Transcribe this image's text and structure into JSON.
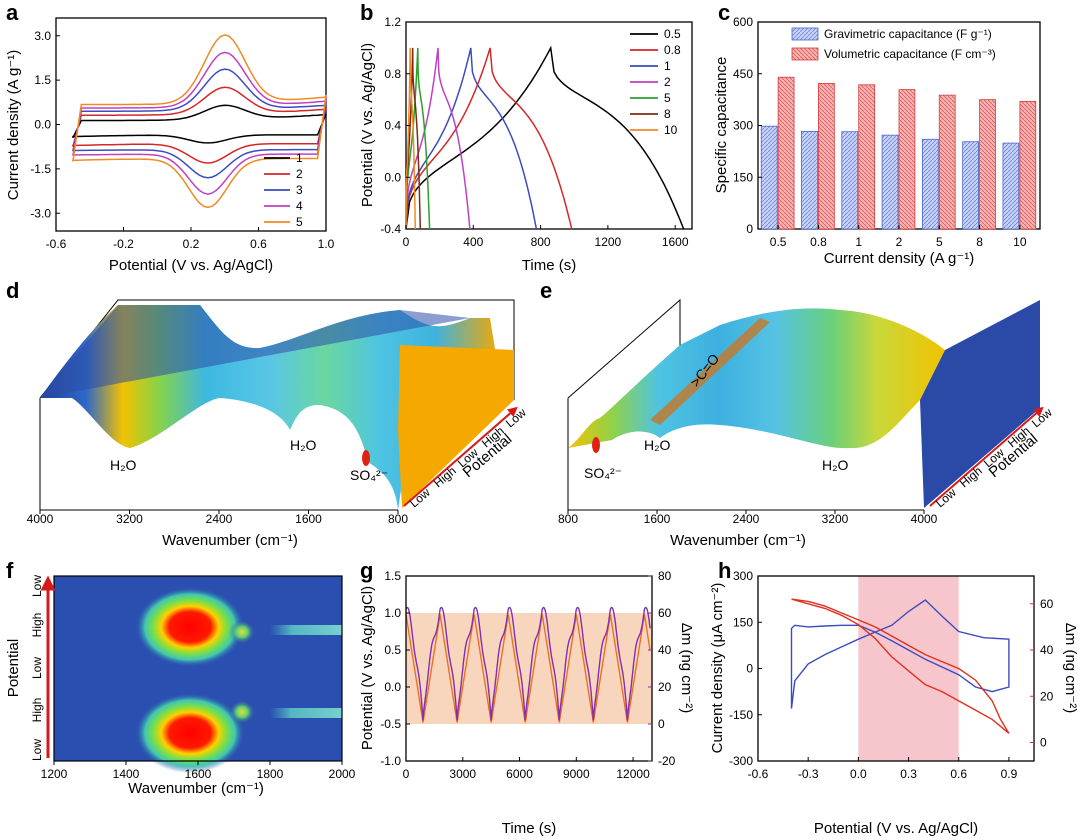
{
  "panel_letters": [
    "a",
    "b",
    "c",
    "d",
    "e",
    "f",
    "g",
    "h"
  ],
  "chart_data": [
    {
      "panel": "a",
      "type": "line",
      "xlabel": "Potential (V vs. Ag/AgCl)",
      "ylabel": "Current density (A g⁻¹)",
      "xlim": [
        -0.6,
        1.0
      ],
      "ylim": [
        -3.6,
        3.6
      ],
      "xticks": [
        "-0.6",
        "-0.2",
        "0.2",
        "0.6",
        "1.0"
      ],
      "yticks": [
        "3.0",
        "1.5",
        "0.0",
        "-1.5",
        "-3.0"
      ],
      "legend_position": "bottom-right",
      "series": [
        {
          "name": "1",
          "color": "#000000",
          "ox_peak": [
            0.4,
            0.62
          ],
          "red_peak": [
            0.3,
            -0.62
          ],
          "upper_base": 0.15,
          "lower_base": -0.35,
          "upper_end": 0.35,
          "lower_start": -0.45
        },
        {
          "name": "2",
          "color": "#d62728",
          "ox_peak": [
            0.4,
            1.25
          ],
          "red_peak": [
            0.3,
            -1.3
          ],
          "upper_base": 0.35,
          "lower_base": -0.65,
          "upper_end": 0.55,
          "lower_start": -0.75
        },
        {
          "name": "3",
          "color": "#3b4cc0",
          "ox_peak": [
            0.4,
            1.88
          ],
          "red_peak": [
            0.3,
            -1.8
          ],
          "upper_base": 0.5,
          "lower_base": -0.85,
          "upper_end": 0.7,
          "lower_start": -0.9
        },
        {
          "name": "4",
          "color": "#c040c0",
          "ox_peak": [
            0.4,
            2.45
          ],
          "red_peak": [
            0.3,
            -2.35
          ],
          "upper_base": 0.62,
          "lower_base": -1.0,
          "upper_end": 0.85,
          "lower_start": -1.05
        },
        {
          "name": "5",
          "color": "#f08a24",
          "ox_peak": [
            0.4,
            3.05
          ],
          "red_peak": [
            0.3,
            -2.8
          ],
          "upper_base": 0.75,
          "lower_base": -1.15,
          "upper_end": 1.0,
          "lower_start": -1.25
        }
      ]
    },
    {
      "panel": "b",
      "type": "line",
      "xlabel": "Time (s)",
      "ylabel": "Potential (V vs. Ag/AgCl)",
      "xlim": [
        0,
        1700
      ],
      "ylim": [
        -0.4,
        1.2
      ],
      "xticks": [
        "0",
        "400",
        "800",
        "1200",
        "1600"
      ],
      "yticks": [
        "1.2",
        "0.8",
        "0.4",
        "0.0",
        "-0.4"
      ],
      "legend_position": "top-right",
      "series": [
        {
          "name": "0.5",
          "color": "#000000",
          "peak_t": 860,
          "end_t": 1650
        },
        {
          "name": "0.8",
          "color": "#d62728",
          "peak_t": 500,
          "end_t": 985
        },
        {
          "name": "1",
          "color": "#3b4cc0",
          "peak_t": 385,
          "end_t": 775
        },
        {
          "name": "2",
          "color": "#c040c0",
          "peak_t": 190,
          "end_t": 380
        },
        {
          "name": "5",
          "color": "#2ca02c",
          "peak_t": 70,
          "end_t": 140
        },
        {
          "name": "8",
          "color": "#7b2d12",
          "peak_t": 40,
          "end_t": 85
        },
        {
          "name": "10",
          "color": "#f08a24",
          "peak_t": 25,
          "end_t": 55
        }
      ]
    },
    {
      "panel": "c",
      "type": "bar",
      "xlabel": "Current density (A g⁻¹)",
      "ylabel": "Specific capacitance",
      "ylim": [
        0,
        600
      ],
      "yticks": [
        "600",
        "450",
        "300",
        "150",
        "0"
      ],
      "legend_position": "top-right",
      "categories": [
        "0.5",
        "0.8",
        "1",
        "2",
        "5",
        "8",
        "10"
      ],
      "series": [
        {
          "name": "Gravimetric capacitance (F g⁻¹)",
          "color": "#8fa3e0",
          "values": [
            298,
            283,
            282,
            272,
            260,
            253,
            249
          ]
        },
        {
          "name": "Volumetric capacitance (F cm⁻³)",
          "color": "#f08080",
          "values": [
            440,
            422,
            418,
            404,
            388,
            375,
            370
          ]
        }
      ]
    },
    {
      "panel": "d",
      "type": "area",
      "xlabel": "Wavenumber (cm⁻¹)",
      "xticks": [
        "4000",
        "3200",
        "2400",
        "1600",
        "800"
      ],
      "peaks": [
        "H₂O",
        "H₂O",
        "SO₄²⁻"
      ],
      "potential_axis": {
        "title": "Potential",
        "labels": [
          "Low",
          "High",
          "Low",
          "High",
          "Low"
        ]
      }
    },
    {
      "panel": "e",
      "type": "area",
      "xlabel": "Wavenumber (cm⁻¹)",
      "xticks": [
        "800",
        "1600",
        "2400",
        "3200",
        "4000"
      ],
      "peaks": [
        "SO₄²⁻",
        "H₂O",
        "H₂O",
        ">C=O"
      ],
      "potential_axis": {
        "title": "Potential",
        "labels": [
          "Low",
          "High",
          "Low",
          "High",
          "Low"
        ]
      }
    },
    {
      "panel": "f",
      "type": "heatmap",
      "xlabel": "Wavenumber (cm⁻¹)",
      "xlim": [
        1200,
        2000
      ],
      "xticks": [
        "1200",
        "1400",
        "1600",
        "1800",
        "2000"
      ],
      "ylabel": "Potential",
      "ylabels": [
        "Low",
        "High",
        "Low",
        "High",
        "Low"
      ]
    },
    {
      "panel": "g",
      "type": "line",
      "xlabel": "Time (s)",
      "ylabel": "Potential (V vs. Ag/AgCl)",
      "y2label": "Δm (ng cm⁻²)",
      "xlim": [
        0,
        13000
      ],
      "ylim": [
        -1.0,
        1.5
      ],
      "y2lim": [
        -20,
        80
      ],
      "xticks": [
        "0",
        "3000",
        "6000",
        "9000",
        "12000"
      ],
      "yticks": [
        "1.5",
        "1.0",
        "0.5",
        "0.0",
        "-0.5",
        "-1.0"
      ],
      "y2ticks": [
        "80",
        "60",
        "40",
        "20",
        "0",
        "-20"
      ],
      "potential_window": [
        -0.5,
        1.0
      ],
      "series": [
        {
          "name": "Potential",
          "color": "#f07020",
          "period_s": 1800,
          "min": -0.48,
          "max": 0.98
        },
        {
          "name": "Δm",
          "color": "#8030b0",
          "period_s": 1800,
          "min": 2,
          "max": 62
        }
      ]
    },
    {
      "panel": "h",
      "type": "line",
      "xlabel": "Potential (V vs. Ag/AgCl)",
      "ylabel": "Current density (μA cm⁻²)",
      "y2label": "Δm (ng cm⁻²)",
      "xlim": [
        -0.6,
        1.05
      ],
      "ylim": [
        -300,
        300
      ],
      "y2lim": [
        -8,
        72
      ],
      "xticks": [
        "-0.6",
        "-0.3",
        "0.0",
        "0.3",
        "0.6",
        "0.9"
      ],
      "yticks": [
        "300",
        "150",
        "0",
        "-150",
        "-300"
      ],
      "y2ticks": [
        "60",
        "40",
        "20",
        "0"
      ],
      "highlight_x": [
        0.0,
        0.6
      ],
      "series": [
        {
          "name": "Current density",
          "color": "#3b4cc0",
          "x": [
            -0.4,
            -0.38,
            -0.3,
            -0.2,
            -0.1,
            0.0,
            0.1,
            0.2,
            0.3,
            0.4,
            0.5,
            0.6,
            0.75,
            0.9,
            0.9,
            0.8,
            0.7,
            0.6,
            0.5,
            0.4,
            0.3,
            0.2,
            0.1,
            0.0,
            -0.1,
            -0.2,
            -0.3,
            -0.38,
            -0.4,
            -0.4
          ],
          "y": [
            -130,
            -40,
            15,
            45,
            70,
            95,
            118,
            140,
            185,
            222,
            170,
            120,
            100,
            95,
            -60,
            -75,
            -60,
            -20,
            5,
            30,
            60,
            90,
            118,
            140,
            140,
            138,
            135,
            140,
            130,
            -130
          ]
        },
        {
          "name": "Δm",
          "color": "#e03020",
          "x": [
            -0.4,
            -0.3,
            -0.2,
            -0.1,
            0.0,
            0.1,
            0.2,
            0.3,
            0.4,
            0.5,
            0.6,
            0.7,
            0.8,
            0.85,
            0.9,
            0.85,
            0.8,
            0.7,
            0.6,
            0.5,
            0.4,
            0.3,
            0.2,
            0.1,
            0.0,
            -0.1,
            -0.2,
            -0.3,
            -0.4
          ],
          "y": [
            62,
            61,
            59,
            56,
            53,
            50,
            46,
            42,
            38,
            35,
            32,
            27,
            18,
            10,
            4,
            7,
            10,
            14,
            18,
            22,
            25,
            31,
            37,
            45,
            51,
            55,
            58,
            60,
            62
          ]
        }
      ]
    }
  ]
}
